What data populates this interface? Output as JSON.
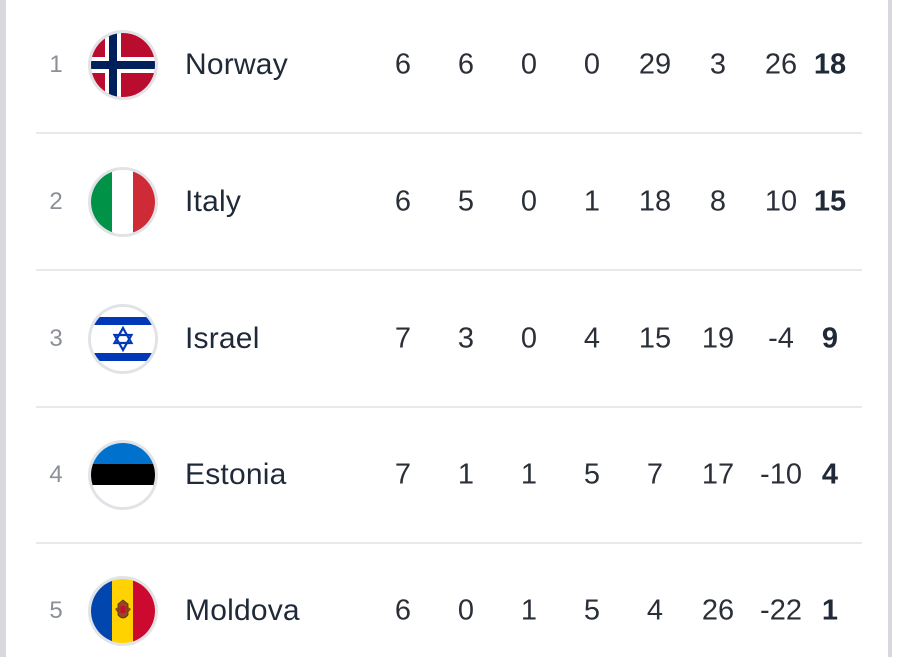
{
  "standings": [
    {
      "position": "1",
      "team": "Norway",
      "flag": "norway-flag-icon",
      "played": "6",
      "won": "6",
      "drawn": "0",
      "lost": "0",
      "goals_for": "29",
      "goals_against": "3",
      "goal_diff": "26",
      "points": "18"
    },
    {
      "position": "2",
      "team": "Italy",
      "flag": "italy-flag-icon",
      "played": "6",
      "won": "5",
      "drawn": "0",
      "lost": "1",
      "goals_for": "18",
      "goals_against": "8",
      "goal_diff": "10",
      "points": "15"
    },
    {
      "position": "3",
      "team": "Israel",
      "flag": "israel-flag-icon",
      "played": "7",
      "won": "3",
      "drawn": "0",
      "lost": "4",
      "goals_for": "15",
      "goals_against": "19",
      "goal_diff": "-4",
      "points": "9"
    },
    {
      "position": "4",
      "team": "Estonia",
      "flag": "estonia-flag-icon",
      "played": "7",
      "won": "1",
      "drawn": "1",
      "lost": "5",
      "goals_for": "7",
      "goals_against": "17",
      "goal_diff": "-10",
      "points": "4"
    },
    {
      "position": "5",
      "team": "Moldova",
      "flag": "moldova-flag-icon",
      "played": "6",
      "won": "0",
      "drawn": "1",
      "lost": "5",
      "goals_for": "4",
      "goals_against": "26",
      "goal_diff": "-22",
      "points": "1"
    }
  ],
  "colors": {
    "text_primary": "#1f2937",
    "text_muted": "#8b8f97",
    "divider": "#e8e9ec",
    "border": "#d7d9de"
  }
}
